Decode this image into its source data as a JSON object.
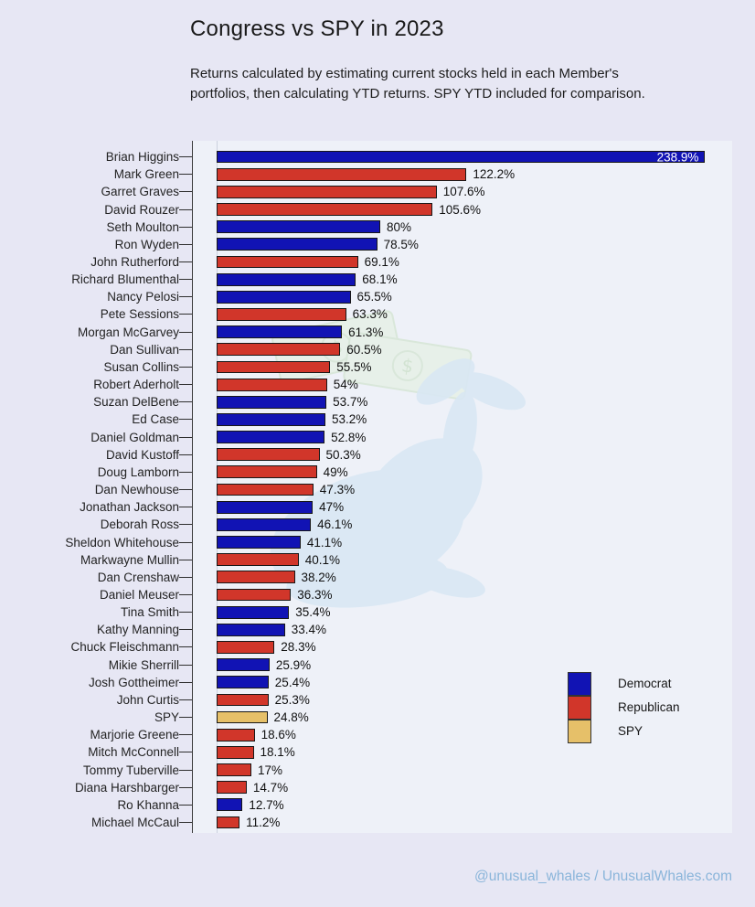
{
  "title": "Congress vs SPY in 2023",
  "subtitle": "Returns calculated by estimating current stocks held in each Member's portfolios, then calculating YTD returns. SPY YTD included for comparison.",
  "footer": "@unusual_whales / UnusualWhales.com",
  "colors": {
    "page_background": "#e7e7f4",
    "plot_background": "#eef1f8",
    "democrat": "#1113b4",
    "republican": "#d1362a",
    "spy": "#e6c069",
    "bar_border": "#171717",
    "axis": "#3a3a3a",
    "footer_link": "#8ab5da",
    "watermark_blue": "#d9e8f4",
    "watermark_green": "#e3f0de"
  },
  "legend": {
    "items": [
      {
        "label": "Democrat",
        "party": "Democrat"
      },
      {
        "label": "Republican",
        "party": "Republican"
      },
      {
        "label": "SPY",
        "party": "SPY"
      }
    ]
  },
  "chart_data": {
    "type": "bar",
    "orientation": "horizontal",
    "title": "Congress vs SPY in 2023",
    "xlabel": "",
    "ylabel": "",
    "value_unit": "%",
    "xlim": [
      0,
      252
    ],
    "grid": false,
    "legend_position": "center-right",
    "bars": [
      {
        "name": "Brian Higgins",
        "value": 238.9,
        "display": "238.9%",
        "party": "Democrat"
      },
      {
        "name": "Mark Green",
        "value": 122.2,
        "display": "122.2%",
        "party": "Republican"
      },
      {
        "name": "Garret Graves",
        "value": 107.6,
        "display": "107.6%",
        "party": "Republican"
      },
      {
        "name": "David Rouzer",
        "value": 105.6,
        "display": "105.6%",
        "party": "Republican"
      },
      {
        "name": "Seth Moulton",
        "value": 80,
        "display": "80%",
        "party": "Democrat"
      },
      {
        "name": "Ron Wyden",
        "value": 78.5,
        "display": "78.5%",
        "party": "Democrat"
      },
      {
        "name": "John Rutherford",
        "value": 69.1,
        "display": "69.1%",
        "party": "Republican"
      },
      {
        "name": "Richard Blumenthal",
        "value": 68.1,
        "display": "68.1%",
        "party": "Democrat"
      },
      {
        "name": "Nancy Pelosi",
        "value": 65.5,
        "display": "65.5%",
        "party": "Democrat"
      },
      {
        "name": "Pete Sessions",
        "value": 63.3,
        "display": "63.3%",
        "party": "Republican"
      },
      {
        "name": "Morgan McGarvey",
        "value": 61.3,
        "display": "61.3%",
        "party": "Democrat"
      },
      {
        "name": "Dan Sullivan",
        "value": 60.5,
        "display": "60.5%",
        "party": "Republican"
      },
      {
        "name": "Susan Collins",
        "value": 55.5,
        "display": "55.5%",
        "party": "Republican"
      },
      {
        "name": "Robert Aderholt",
        "value": 54,
        "display": "54%",
        "party": "Republican"
      },
      {
        "name": "Suzan DelBene",
        "value": 53.7,
        "display": "53.7%",
        "party": "Democrat"
      },
      {
        "name": "Ed Case",
        "value": 53.2,
        "display": "53.2%",
        "party": "Democrat"
      },
      {
        "name": "Daniel Goldman",
        "value": 52.8,
        "display": "52.8%",
        "party": "Democrat"
      },
      {
        "name": "David Kustoff",
        "value": 50.3,
        "display": "50.3%",
        "party": "Republican"
      },
      {
        "name": "Doug Lamborn",
        "value": 49,
        "display": "49%",
        "party": "Republican"
      },
      {
        "name": "Dan Newhouse",
        "value": 47.3,
        "display": "47.3%",
        "party": "Republican"
      },
      {
        "name": "Jonathan Jackson",
        "value": 47,
        "display": "47%",
        "party": "Democrat"
      },
      {
        "name": "Deborah Ross",
        "value": 46.1,
        "display": "46.1%",
        "party": "Democrat"
      },
      {
        "name": "Sheldon Whitehouse",
        "value": 41.1,
        "display": "41.1%",
        "party": "Democrat"
      },
      {
        "name": "Markwayne Mullin",
        "value": 40.1,
        "display": "40.1%",
        "party": "Republican"
      },
      {
        "name": "Dan Crenshaw",
        "value": 38.2,
        "display": "38.2%",
        "party": "Republican"
      },
      {
        "name": "Daniel Meuser",
        "value": 36.3,
        "display": "36.3%",
        "party": "Republican"
      },
      {
        "name": "Tina Smith",
        "value": 35.4,
        "display": "35.4%",
        "party": "Democrat"
      },
      {
        "name": "Kathy Manning",
        "value": 33.4,
        "display": "33.4%",
        "party": "Democrat"
      },
      {
        "name": "Chuck Fleischmann",
        "value": 28.3,
        "display": "28.3%",
        "party": "Republican"
      },
      {
        "name": "Mikie Sherrill",
        "value": 25.9,
        "display": "25.9%",
        "party": "Democrat"
      },
      {
        "name": "Josh Gottheimer",
        "value": 25.4,
        "display": "25.4%",
        "party": "Democrat"
      },
      {
        "name": "John Curtis",
        "value": 25.3,
        "display": "25.3%",
        "party": "Republican"
      },
      {
        "name": "SPY",
        "value": 24.8,
        "display": "24.8%",
        "party": "SPY"
      },
      {
        "name": "Marjorie Greene",
        "value": 18.6,
        "display": "18.6%",
        "party": "Republican"
      },
      {
        "name": "Mitch McConnell",
        "value": 18.1,
        "display": "18.1%",
        "party": "Republican"
      },
      {
        "name": "Tommy Tuberville",
        "value": 17,
        "display": "17%",
        "party": "Republican"
      },
      {
        "name": "Diana Harshbarger",
        "value": 14.7,
        "display": "14.7%",
        "party": "Republican"
      },
      {
        "name": "Ro Khanna",
        "value": 12.7,
        "display": "12.7%",
        "party": "Democrat"
      },
      {
        "name": "Michael McCaul",
        "value": 11.2,
        "display": "11.2%",
        "party": "Republican"
      }
    ]
  }
}
